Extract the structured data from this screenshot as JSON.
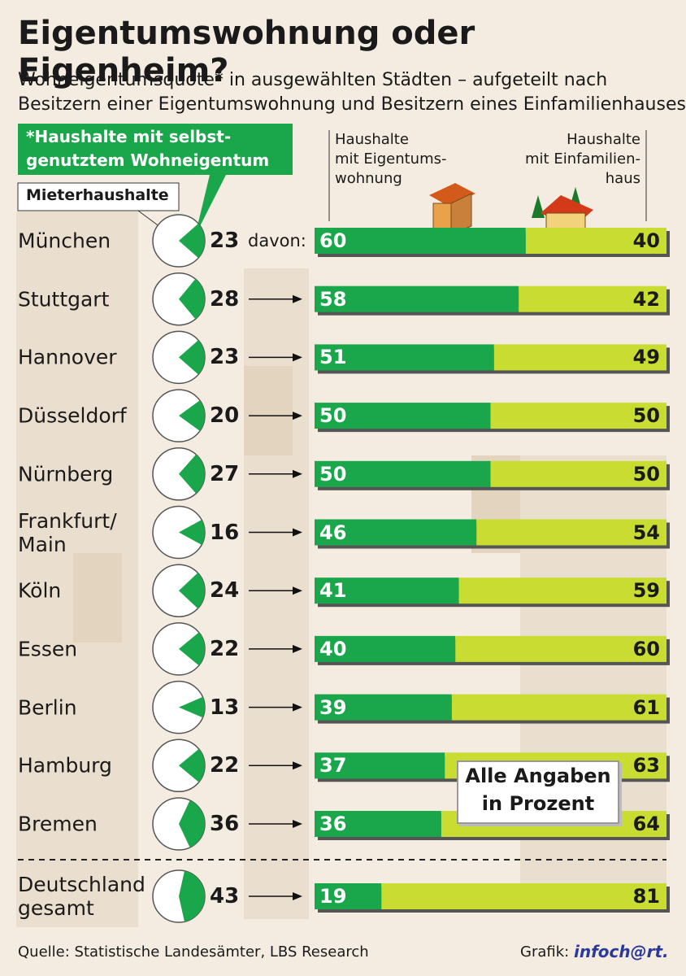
{
  "header": {
    "title": "Eigentumswohnung oder Eigenheim?",
    "subtitle": "Wohneigentumsquote* in ausgewählten Städten – aufgeteilt nach\nBesitzern einer Eigentumswohnung und Besitzern eines Einfamilienhauses"
  },
  "chart_data": {
    "type": "bar",
    "orientation": "horizontal",
    "stacked": true,
    "categories": [
      "München",
      "Stuttgart",
      "Hannover",
      "Düsseldorf",
      "Nürnberg",
      "Frankfurt/\nMain",
      "Köln",
      "Essen",
      "Berlin",
      "Hamburg",
      "Bremen",
      "Deutschland\ngesamt"
    ],
    "ownership": {
      "name": "*Haushalte mit selbst-\ngenutztem Wohneigentum",
      "color": "#1aa64a",
      "values": [
        23,
        28,
        23,
        20,
        27,
        16,
        24,
        22,
        13,
        22,
        36,
        43
      ]
    },
    "renters": {
      "name": "Mieterhaushalte",
      "color": "#ffffff"
    },
    "series": [
      {
        "name": "Haushalte\nmit Eigentums-\nwohnung",
        "color": "#1aa64a",
        "values": [
          60,
          58,
          51,
          50,
          50,
          46,
          41,
          40,
          39,
          37,
          36,
          19
        ]
      },
      {
        "name": "Haushalte\nmit Einfamilien-\nhaus",
        "color": "#c8dc32",
        "values": [
          40,
          42,
          49,
          50,
          50,
          54,
          59,
          60,
          61,
          63,
          64,
          81
        ]
      }
    ],
    "xlim": [
      0,
      100
    ],
    "lead_label": "davon:",
    "note": "Alle Angaben\nin Prozent"
  },
  "footer": {
    "source": "Quelle: Statistische Landesämter, LBS Research",
    "credit": "Grafik:",
    "brand": "infoch@rt."
  }
}
